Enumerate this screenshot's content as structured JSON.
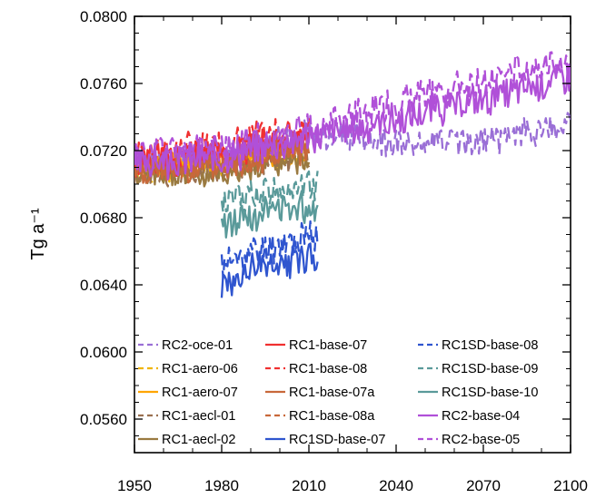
{
  "chart_data": {
    "type": "line",
    "title": "",
    "xlabel": "",
    "ylabel": "Tg a⁻¹",
    "xlim": [
      1950,
      2100
    ],
    "ylim": [
      0.054,
      0.08
    ],
    "x_ticks": [
      1950,
      1980,
      2010,
      2040,
      2070,
      2100
    ],
    "x_tick_labels": [
      "1950",
      "1980",
      "2010",
      "2040",
      "2070",
      "2100"
    ],
    "y_ticks": [
      0.056,
      0.06,
      0.064,
      0.068,
      0.072,
      0.076,
      0.08
    ],
    "y_tick_labels": [
      "0.0560",
      "0.0600",
      "0.0640",
      "0.0680",
      "0.0720",
      "0.0760",
      "0.0800"
    ],
    "grid": false,
    "legend_position": "bottom",
    "series": [
      {
        "name": "RC2-oce-01",
        "color": "#9a6fd6",
        "dash": "dashed",
        "start": 1950,
        "end": 2100,
        "knots": [
          [
            1950,
            0.071
          ],
          [
            1980,
            0.0715
          ],
          [
            2010,
            0.073
          ],
          [
            2040,
            0.0725
          ],
          [
            2070,
            0.0725
          ],
          [
            2100,
            0.0735
          ]
        ],
        "amp": 0.0008,
        "seed": 1
      },
      {
        "name": "RC1-aero-06",
        "color": "#f0b400",
        "dash": "dashed",
        "start": 1950,
        "end": 2010,
        "knots": [
          [
            1950,
            0.0708
          ],
          [
            1980,
            0.0712
          ],
          [
            2010,
            0.072
          ]
        ],
        "amp": 0.0007,
        "seed": 2
      },
      {
        "name": "RC1-aero-07",
        "color": "#ffa500",
        "dash": "solid",
        "start": 1950,
        "end": 2010,
        "knots": [
          [
            1950,
            0.071
          ],
          [
            1980,
            0.0714
          ],
          [
            2010,
            0.0722
          ]
        ],
        "amp": 0.0007,
        "seed": 3
      },
      {
        "name": "RC1-aecl-01",
        "color": "#9a7050",
        "dash": "dashed",
        "start": 1950,
        "end": 2010,
        "knots": [
          [
            1950,
            0.0706
          ],
          [
            1980,
            0.0708
          ],
          [
            2010,
            0.0716
          ]
        ],
        "amp": 0.0007,
        "seed": 4
      },
      {
        "name": "RC1-aecl-02",
        "color": "#9a7a40",
        "dash": "solid",
        "start": 1950,
        "end": 2010,
        "knots": [
          [
            1950,
            0.0704
          ],
          [
            1980,
            0.0706
          ],
          [
            2010,
            0.0714
          ]
        ],
        "amp": 0.0007,
        "seed": 5
      },
      {
        "name": "RC1-base-07",
        "color": "#f03030",
        "dash": "solid",
        "start": 1950,
        "end": 2010,
        "knots": [
          [
            1950,
            0.0712
          ],
          [
            1980,
            0.0718
          ],
          [
            2010,
            0.0728
          ]
        ],
        "amp": 0.0008,
        "seed": 6
      },
      {
        "name": "RC1-base-08",
        "color": "#f03030",
        "dash": "dashed",
        "start": 1950,
        "end": 2010,
        "knots": [
          [
            1950,
            0.0718
          ],
          [
            1980,
            0.0724
          ],
          [
            2010,
            0.0734
          ]
        ],
        "amp": 0.0008,
        "seed": 7
      },
      {
        "name": "RC1-base-07a",
        "color": "#c8683a",
        "dash": "solid",
        "start": 1950,
        "end": 2010,
        "knots": [
          [
            1950,
            0.0706
          ],
          [
            1980,
            0.071
          ],
          [
            2010,
            0.072
          ]
        ],
        "amp": 0.0007,
        "seed": 8
      },
      {
        "name": "RC1-base-08a",
        "color": "#c8683a",
        "dash": "dashed",
        "start": 1950,
        "end": 2010,
        "knots": [
          [
            1950,
            0.0708
          ],
          [
            1980,
            0.0712
          ],
          [
            2010,
            0.0722
          ]
        ],
        "amp": 0.0007,
        "seed": 9
      },
      {
        "name": "RC1SD-base-07",
        "color": "#2f55cf",
        "dash": "solid",
        "start": 1980,
        "end": 2013,
        "knots": [
          [
            1980,
            0.064
          ],
          [
            1995,
            0.0652
          ],
          [
            2013,
            0.0658
          ]
        ],
        "amp": 0.0009,
        "seed": 10
      },
      {
        "name": "RC1SD-base-08",
        "color": "#2f55cf",
        "dash": "dashed",
        "start": 1980,
        "end": 2013,
        "knots": [
          [
            1980,
            0.0652
          ],
          [
            1995,
            0.0662
          ],
          [
            2013,
            0.067
          ]
        ],
        "amp": 0.0009,
        "seed": 11
      },
      {
        "name": "RC1SD-base-09",
        "color": "#5a9a9a",
        "dash": "dashed",
        "start": 1980,
        "end": 2013,
        "knots": [
          [
            1980,
            0.0688
          ],
          [
            1995,
            0.0696
          ],
          [
            2013,
            0.07
          ]
        ],
        "amp": 0.0009,
        "seed": 12
      },
      {
        "name": "RC1SD-base-10",
        "color": "#5a9a9a",
        "dash": "solid",
        "start": 1980,
        "end": 2013,
        "knots": [
          [
            1980,
            0.0676
          ],
          [
            1995,
            0.0684
          ],
          [
            2013,
            0.0688
          ]
        ],
        "amp": 0.0009,
        "seed": 13
      },
      {
        "name": "RC2-base-04",
        "color": "#b050d8",
        "dash": "solid",
        "start": 1950,
        "end": 2100,
        "knots": [
          [
            1950,
            0.0712
          ],
          [
            1980,
            0.0716
          ],
          [
            2010,
            0.0728
          ],
          [
            2040,
            0.0738
          ],
          [
            2070,
            0.075
          ],
          [
            2100,
            0.0765
          ]
        ],
        "amp": 0.0009,
        "seed": 14
      },
      {
        "name": "RC2-base-05",
        "color": "#b050d8",
        "dash": "dashed",
        "start": 1950,
        "end": 2100,
        "knots": [
          [
            1950,
            0.0718
          ],
          [
            1980,
            0.0722
          ],
          [
            2010,
            0.0733
          ],
          [
            2040,
            0.0748
          ],
          [
            2070,
            0.0762
          ],
          [
            2100,
            0.0775
          ]
        ],
        "amp": 0.0009,
        "seed": 15
      }
    ]
  }
}
